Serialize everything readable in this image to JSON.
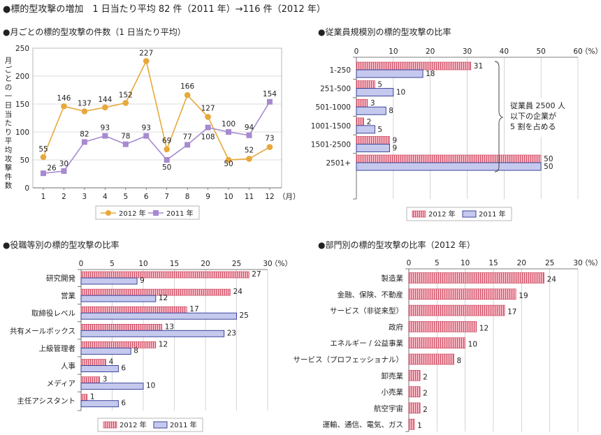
{
  "main_title": "●標的型攻撃の増加　1 日当たり平均 82 件（2011 年）→116 件（2012 年）",
  "colors": {
    "y2012_bar_fill": "#f4b6c2",
    "y2012_bar_stripe": "#c7364f",
    "y2011_bar_fill": "#c5c9ee",
    "y2011_bar_border": "#2b3590",
    "line_2012": "#e7a83c",
    "line_2011": "#a78ad0",
    "grid": "#b9b9b9"
  },
  "icons": {
    "line_2012_marker": "circle-marker",
    "line_2011_marker": "square-marker"
  },
  "chart_data": [
    {
      "id": "monthly",
      "type": "line",
      "title": "●月ごとの標的型攻撃の件数（1 日当たり平均）",
      "ylabel": "月ごとの一日当たり平均攻撃件数",
      "xlabel": "",
      "x": [
        1,
        2,
        3,
        4,
        5,
        6,
        7,
        8,
        9,
        10,
        11,
        12
      ],
      "x_unit": "（月）",
      "ylim": [
        0,
        250
      ],
      "yticks": [
        0,
        50,
        100,
        150,
        200,
        250
      ],
      "grid": true,
      "legend_position": "bottom",
      "series": [
        {
          "name": "2012 年",
          "values": [
            55,
            146,
            137,
            144,
            152,
            227,
            69,
            166,
            127,
            50,
            52,
            73
          ]
        },
        {
          "name": "2011 年",
          "values": [
            26,
            30,
            82,
            93,
            78,
            93,
            50,
            77,
            108,
            100,
            94,
            154
          ]
        }
      ]
    },
    {
      "id": "company_size",
      "type": "bar",
      "orientation": "horizontal",
      "title": "●従業員規模別の標的型攻撃の比率",
      "categories": [
        "1-250",
        "251-500",
        "501-1000",
        "1001-1500",
        "1501-2500",
        "2501+"
      ],
      "xlim": [
        0,
        60
      ],
      "xticks": [
        0,
        10,
        20,
        30,
        40,
        50,
        60
      ],
      "unit": "（%）",
      "grid": true,
      "legend_position": "bottom",
      "annotation": [
        "従業員 2500 人",
        "以下の企業が",
        "5 割を占める"
      ],
      "series": [
        {
          "name": "2012 年",
          "values": [
            31,
            5,
            3,
            2,
            9,
            50
          ]
        },
        {
          "name": "2011 年",
          "values": [
            18,
            10,
            8,
            5,
            9,
            50
          ]
        }
      ]
    },
    {
      "id": "job_role",
      "type": "bar",
      "orientation": "horizontal",
      "title": "●役職等別の標的型攻撃の比率",
      "categories": [
        "研究開発",
        "営業",
        "取締役レベル",
        "共有メールボックス",
        "上級管理者",
        "人事",
        "メディア",
        "主任アシスタント"
      ],
      "xlim": [
        0,
        30
      ],
      "xticks": [
        0,
        5,
        10,
        15,
        20,
        25,
        30
      ],
      "unit": "（%）",
      "grid": true,
      "legend_position": "bottom",
      "series": [
        {
          "name": "2012 年",
          "values": [
            27,
            24,
            17,
            13,
            12,
            4,
            3,
            1
          ]
        },
        {
          "name": "2011 年",
          "values": [
            9,
            12,
            25,
            23,
            8,
            6,
            10,
            6
          ]
        }
      ]
    },
    {
      "id": "industry",
      "type": "bar",
      "orientation": "horizontal",
      "title": "●部門別の標的型攻撃の比率（2012 年）",
      "categories": [
        "製造業",
        "金融、保険、不動産",
        "サービス（非従来型）",
        "政府",
        "エネルギー / 公益事業",
        "サービス（プロフェッショナル）",
        "卸売業",
        "小売業",
        "航空宇宙",
        "運輸、通信、電気、ガス"
      ],
      "xlim": [
        0,
        30
      ],
      "xticks": [
        0,
        5,
        10,
        15,
        20,
        25,
        30
      ],
      "unit": "（%）",
      "grid": true,
      "series": [
        {
          "values": [
            24,
            19,
            17,
            12,
            10,
            8,
            2,
            2,
            2,
            1
          ]
        }
      ]
    }
  ]
}
